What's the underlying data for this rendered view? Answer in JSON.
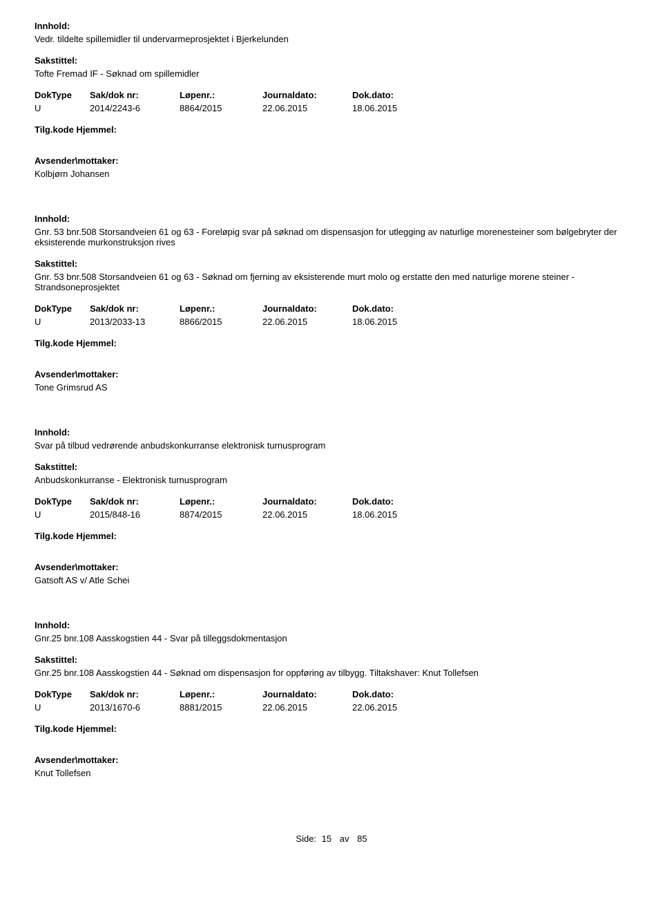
{
  "labels": {
    "innhold": "Innhold:",
    "sakstittel": "Sakstittel:",
    "doktype": "DokType",
    "sakdok": "Sak/dok nr:",
    "lopenr": "Løpenr.:",
    "journaldato": "Journaldato:",
    "dokdato": "Dok.dato:",
    "tilgkode": "Tilg.kode Hjemmel:",
    "avsender": "Avsender\\mottaker:"
  },
  "entries": [
    {
      "innhold": "Vedr. tildelte spillemidler til undervarmeprosjektet i Bjerkelunden",
      "sakstittel": "Tofte Fremad IF - Søknad om spillemidler",
      "doktype": "U",
      "sakdok": "2014/2243-6",
      "lopenr": "8864/2015",
      "journaldato": "22.06.2015",
      "dokdato": "18.06.2015",
      "avsender": "Kolbjørn Johansen"
    },
    {
      "innhold": "Gnr. 53 bnr.508 Storsandveien 61 og 63 - Foreløpig svar på søknad om dispensasjon for utlegging av naturlige morenesteiner som bølgebryter der eksisterende murkonstruksjon rives",
      "sakstittel": "Gnr. 53 bnr.508 Storsandveien 61 og 63 - Søknad om fjerning av eksisterende murt molo og erstatte den med naturlige morene steiner - Strandsoneprosjektet",
      "doktype": "U",
      "sakdok": "2013/2033-13",
      "lopenr": "8866/2015",
      "journaldato": "22.06.2015",
      "dokdato": "18.06.2015",
      "avsender": "Tone Grimsrud AS"
    },
    {
      "innhold": "Svar på tilbud vedrørende anbudskonkurranse elektronisk turnusprogram",
      "sakstittel": "Anbudskonkurranse - Elektronisk turnusprogram",
      "doktype": "U",
      "sakdok": "2015/848-16",
      "lopenr": "8874/2015",
      "journaldato": "22.06.2015",
      "dokdato": "18.06.2015",
      "avsender": "Gatsoft AS v/ Atle Schei"
    },
    {
      "innhold": "Gnr.25 bnr.108 Aasskogstien 44 - Svar på tilleggsdokmentasjon",
      "sakstittel": "Gnr.25 bnr.108 Aasskogstien 44 - Søknad om dispensasjon for oppføring av tilbygg. Tiltakshaver: Knut Tollefsen",
      "doktype": "U",
      "sakdok": "2013/1670-6",
      "lopenr": "8881/2015",
      "journaldato": "22.06.2015",
      "dokdato": "22.06.2015",
      "avsender": "Knut Tollefsen"
    }
  ],
  "footer": {
    "label": "Side:",
    "page": "15",
    "of": "av",
    "total": "85"
  }
}
